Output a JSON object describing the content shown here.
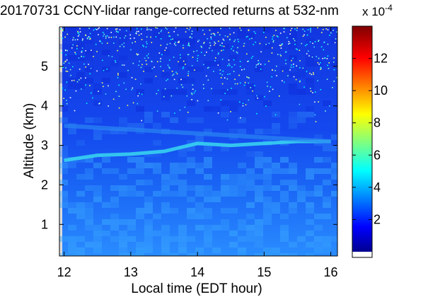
{
  "chart_data": {
    "type": "heatmap",
    "title": "20170731 CCNY-lidar range-corrected returns at 532-nm",
    "xlabel": "Local time (EDT hour)",
    "ylabel": "Altitude (km)",
    "xlim": [
      11.93,
      16.1
    ],
    "ylim": [
      0.2,
      6.0
    ],
    "xticks": [
      "12",
      "13",
      "14",
      "15",
      "16"
    ],
    "yticks": [
      "1",
      "2",
      "3",
      "4",
      "5"
    ],
    "colorbar": {
      "ticks": [
        "2",
        "4",
        "6",
        "8",
        "10",
        "12"
      ],
      "range": [
        0,
        14
      ],
      "exponent_base": "x 10",
      "exponent_power": "-4",
      "colormap": "jet"
    },
    "features": [
      {
        "name": "aerosol-layer-top",
        "x": [
          12.0,
          12.5,
          13.0,
          13.5,
          14.0,
          14.5,
          15.0,
          15.5,
          16.0
        ],
        "y": [
          2.62,
          2.75,
          2.78,
          2.85,
          3.05,
          3.0,
          3.05,
          3.1,
          3.1
        ]
      },
      {
        "name": "upper-layer",
        "x": [
          12.0,
          13.0,
          14.0,
          15.0,
          16.0
        ],
        "y": [
          3.5,
          3.4,
          3.3,
          3.2,
          3.1
        ]
      }
    ]
  }
}
